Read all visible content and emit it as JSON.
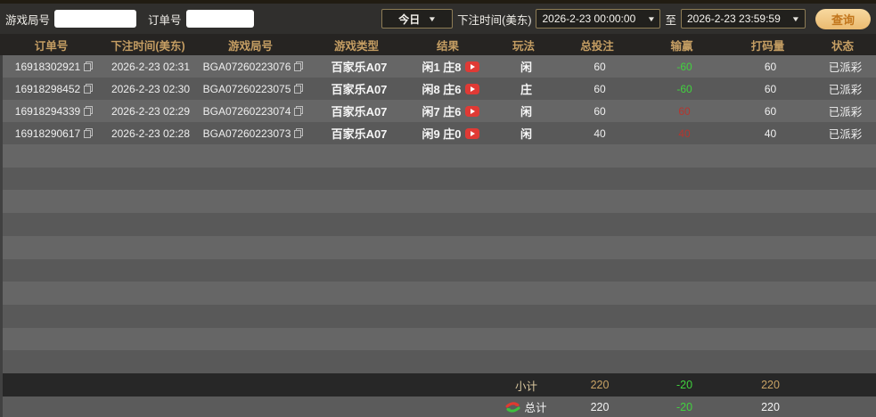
{
  "filters": {
    "game_round_label": "游戏局号",
    "order_no_label": "订单号",
    "game_round_value": "",
    "order_no_value": "",
    "range_select": "今日",
    "bet_time_label": "下注时间(美东)",
    "start_time": "2026-2-23 00:00:00",
    "to_label": "至",
    "end_time": "2026-2-23 23:59:59",
    "query_button": "查询"
  },
  "table": {
    "columns": [
      "订单号",
      "下注时间(美东)",
      "游戏局号",
      "游戏类型",
      "结果",
      "玩法",
      "总投注",
      "输赢",
      "打码量",
      "状态"
    ],
    "rows": [
      {
        "order_no": "16918302921",
        "bet_time": "2026-2-23 02:31",
        "round_no": "BGA07260223076",
        "game_type": "百家乐A07",
        "result": "闲1 庄8",
        "play": "闲",
        "total_bet": "60",
        "win_loss": "-60",
        "win_loss_color": "#41d23e",
        "turnover": "60",
        "status": "已派彩"
      },
      {
        "order_no": "16918298452",
        "bet_time": "2026-2-23 02:30",
        "round_no": "BGA07260223075",
        "game_type": "百家乐A07",
        "result": "闲8 庄6",
        "play": "庄",
        "total_bet": "60",
        "win_loss": "-60",
        "win_loss_color": "#41d23e",
        "turnover": "60",
        "status": "已派彩"
      },
      {
        "order_no": "16918294339",
        "bet_time": "2026-2-23 02:29",
        "round_no": "BGA07260223074",
        "game_type": "百家乐A07",
        "result": "闲7 庄6",
        "play": "闲",
        "total_bet": "60",
        "win_loss": "60",
        "win_loss_color": "#b5352f",
        "turnover": "60",
        "status": "已派彩"
      },
      {
        "order_no": "16918290617",
        "bet_time": "2026-2-23 02:28",
        "round_no": "BGA07260223073",
        "game_type": "百家乐A07",
        "result": "闲9 庄0",
        "play": "闲",
        "total_bet": "40",
        "win_loss": "40",
        "win_loss_color": "#b5352f",
        "turnover": "40",
        "status": "已派彩"
      }
    ],
    "subtotal": {
      "label": "小计",
      "total_bet": "220",
      "win_loss": "-20",
      "win_loss_color": "#41d23e",
      "turnover": "220"
    },
    "total": {
      "label": "总计",
      "total_bet": "220",
      "win_loss": "-20",
      "win_loss_color": "#41d23e",
      "turnover": "220"
    }
  },
  "colors": {
    "accent_gold": "#c59e63",
    "loss_green": "#41d23e",
    "win_red": "#b5352f"
  }
}
